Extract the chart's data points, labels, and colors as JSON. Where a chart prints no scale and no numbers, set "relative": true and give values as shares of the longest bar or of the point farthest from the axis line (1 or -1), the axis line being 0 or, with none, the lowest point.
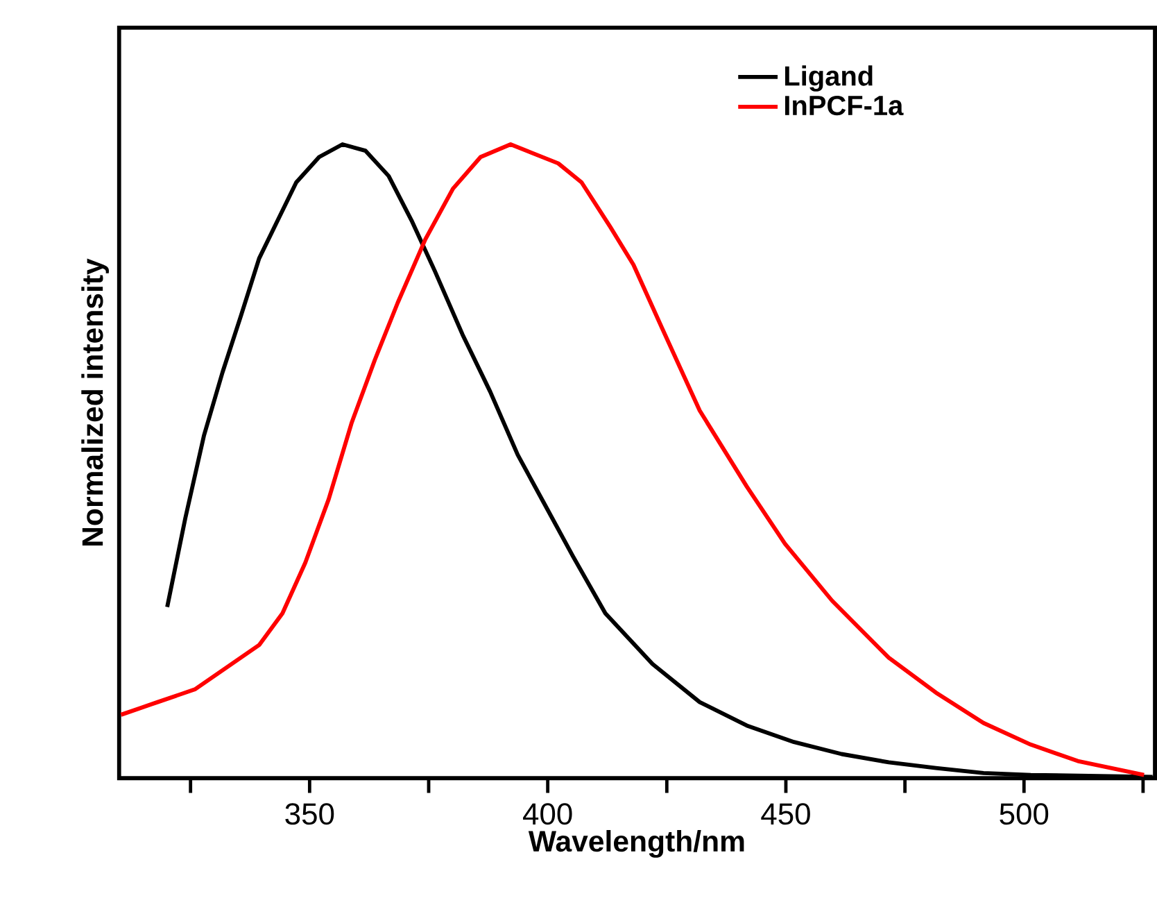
{
  "chart_data": {
    "type": "line",
    "xlabel": "Wavelength/nm",
    "ylabel": "Normalized intensity",
    "relative": true,
    "xlim": [
      310,
      527.5
    ],
    "xticks": [
      {
        "value": 325,
        "label": null
      },
      350,
      {
        "value": 375,
        "label": null
      },
      400,
      {
        "value": 425,
        "label": null
      },
      450,
      {
        "value": 475,
        "label": null
      },
      500,
      {
        "value": 525,
        "label": null
      }
    ],
    "legend": "top right",
    "grid": false,
    "series": [
      {
        "name": "Ligand",
        "color": "#000000",
        "x": [
          320.1,
          323.9,
          327.8,
          331.7,
          335.6,
          339.4,
          343.3,
          347.2,
          352,
          356.9,
          361.7,
          366.6,
          371.4,
          376.3,
          382.1,
          387.9,
          393.7,
          399.5,
          405.3,
          412.1,
          422,
          431.9,
          441.8,
          451.7,
          461.7,
          471.6,
          481.5,
          491.5,
          501.4,
          527
        ],
        "values": [
          0.27,
          0.41,
          0.54,
          0.64,
          0.73,
          0.82,
          0.88,
          0.94,
          0.98,
          1.0,
          0.99,
          0.95,
          0.88,
          0.8,
          0.7,
          0.61,
          0.51,
          0.43,
          0.35,
          0.26,
          0.18,
          0.12,
          0.083,
          0.057,
          0.038,
          0.025,
          0.016,
          0.008,
          0.005,
          0.002
        ]
      },
      {
        "name": "InPCF-1a",
        "color": "#ff0000",
        "x": [
          310.4,
          318.1,
          325.9,
          333.6,
          339.4,
          344.3,
          349.1,
          354,
          358.8,
          363.7,
          368.5,
          374.3,
          380.1,
          385.9,
          392.2,
          402.2,
          407.1,
          413.1,
          418,
          424,
          431.9,
          441.8,
          449.8,
          459.7,
          471.6,
          481.5,
          491.5,
          501.4,
          511.3,
          525.2
        ],
        "values": [
          0.1,
          0.12,
          0.14,
          0.18,
          0.21,
          0.26,
          0.34,
          0.44,
          0.56,
          0.66,
          0.75,
          0.85,
          0.93,
          0.98,
          1.0,
          0.97,
          0.94,
          0.87,
          0.81,
          0.71,
          0.58,
          0.46,
          0.37,
          0.28,
          0.19,
          0.135,
          0.087,
          0.053,
          0.027,
          0.005
        ]
      }
    ]
  }
}
